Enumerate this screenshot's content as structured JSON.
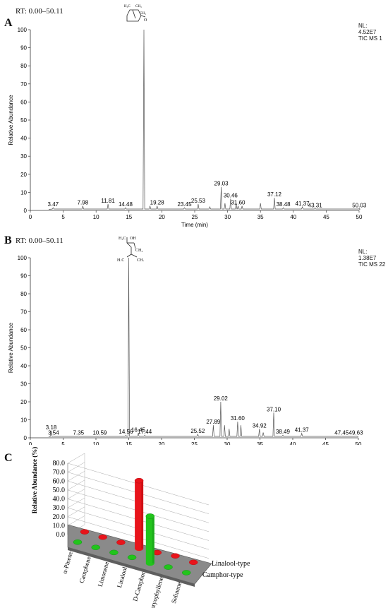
{
  "panel_a": {
    "letter": "A",
    "rt_label": "RT: 0.00–50.11",
    "nl": [
      "NL:",
      "4.52E7",
      "TIC  MS 1"
    ],
    "structure_label": "D-camphor structure"
  },
  "panel_b": {
    "letter": "B",
    "rt_label": "RT: 0.00–50.11",
    "nl": [
      "NL:",
      "1.38E7",
      "TIC  MS 22"
    ],
    "structure_label": "linalool structure"
  },
  "panel_c": {
    "letter": "C"
  },
  "chart_data": [
    {
      "type": "line",
      "panel": "A",
      "xlabel": "Time (min)",
      "ylabel": "Relative Abundance",
      "xlim": [
        0,
        50
      ],
      "ylim": [
        0,
        100
      ],
      "xticks": [
        0,
        5,
        10,
        15,
        20,
        25,
        30,
        35,
        40,
        45,
        50
      ],
      "yticks": [
        0,
        10,
        20,
        30,
        40,
        50,
        60,
        70,
        80,
        90,
        100
      ],
      "peaks": [
        [
          3.47,
          1.5
        ],
        [
          7.98,
          2.5
        ],
        [
          11.81,
          3.5
        ],
        [
          14.48,
          1.5
        ],
        [
          17.27,
          100
        ],
        [
          18.2,
          2.5
        ],
        [
          19.28,
          2.5
        ],
        [
          23.45,
          1.5
        ],
        [
          25.53,
          3.5
        ],
        [
          27.3,
          2
        ],
        [
          29.03,
          13
        ],
        [
          29.6,
          4
        ],
        [
          30.46,
          6.5
        ],
        [
          31.3,
          4
        ],
        [
          31.6,
          2.5
        ],
        [
          32.2,
          2.5
        ],
        [
          35.0,
          4
        ],
        [
          37.12,
          7
        ],
        [
          38.48,
          1.5
        ],
        [
          41.37,
          2
        ],
        [
          43.31,
          1
        ],
        [
          50.03,
          1
        ]
      ],
      "peak_labels": [
        {
          "x": 3.47,
          "text": "3.47"
        },
        {
          "x": 7.98,
          "text": "7.98"
        },
        {
          "x": 11.81,
          "text": "11.81"
        },
        {
          "x": 14.48,
          "text": "14.48"
        },
        {
          "x": 19.28,
          "text": "19.28"
        },
        {
          "x": 23.45,
          "text": "23.45"
        },
        {
          "x": 25.53,
          "text": "25.53"
        },
        {
          "x": 29.03,
          "text": "29.03"
        },
        {
          "x": 30.46,
          "text": "30.46"
        },
        {
          "x": 31.6,
          "text": "31.60"
        },
        {
          "x": 37.12,
          "text": "37.12"
        },
        {
          "x": 38.48,
          "text": "38.48"
        },
        {
          "x": 41.37,
          "text": "41.37"
        },
        {
          "x": 43.31,
          "text": "43.31"
        },
        {
          "x": 50.03,
          "text": "50.03"
        }
      ]
    },
    {
      "type": "line",
      "panel": "B",
      "xlabel": "",
      "ylabel": "Relative Abundance",
      "xlim": [
        0,
        50
      ],
      "ylim": [
        0,
        100
      ],
      "xticks": [
        0,
        5,
        10,
        15,
        20,
        25,
        30,
        35,
        40,
        45,
        50
      ],
      "yticks": [
        0,
        10,
        20,
        30,
        40,
        50,
        60,
        70,
        80,
        90,
        100
      ],
      "peaks": [
        [
          3.18,
          4
        ],
        [
          3.54,
          1
        ],
        [
          7.35,
          1
        ],
        [
          10.59,
          1
        ],
        [
          14.56,
          1.5
        ],
        [
          15.0,
          100
        ],
        [
          16.45,
          2.5
        ],
        [
          17.44,
          1.5
        ],
        [
          25.52,
          2
        ],
        [
          27.89,
          7
        ],
        [
          29.02,
          20
        ],
        [
          29.6,
          7
        ],
        [
          30.3,
          5
        ],
        [
          31.6,
          9
        ],
        [
          32.1,
          7
        ],
        [
          34.92,
          5
        ],
        [
          35.5,
          3
        ],
        [
          37.1,
          14
        ],
        [
          38.49,
          1.5
        ],
        [
          41.37,
          2.5
        ],
        [
          47.45,
          1
        ],
        [
          49.63,
          1
        ]
      ],
      "peak_labels": [
        {
          "x": 3.18,
          "text": "3.18"
        },
        {
          "x": 3.54,
          "text": "3.54"
        },
        {
          "x": 7.35,
          "text": "7.35"
        },
        {
          "x": 10.59,
          "text": "10.59"
        },
        {
          "x": 14.56,
          "text": "14.56"
        },
        {
          "x": 16.45,
          "text": "16.45"
        },
        {
          "x": 17.44,
          "text": "17.44"
        },
        {
          "x": 25.52,
          "text": "25.52"
        },
        {
          "x": 27.89,
          "text": "27.89"
        },
        {
          "x": 29.02,
          "text": "29.02"
        },
        {
          "x": 31.6,
          "text": "31.60"
        },
        {
          "x": 34.92,
          "text": "34.92"
        },
        {
          "x": 37.1,
          "text": "37.10"
        },
        {
          "x": 38.49,
          "text": "38.49"
        },
        {
          "x": 41.37,
          "text": "41.37"
        },
        {
          "x": 47.45,
          "text": "47.45"
        },
        {
          "x": 49.63,
          "text": "49.63"
        }
      ]
    },
    {
      "type": "bar",
      "panel": "C",
      "ylabel": "Relative Abundance (%)",
      "ylim": [
        0,
        80
      ],
      "yticks": [
        "0.0",
        "10.0",
        "20.0",
        "30.0",
        "40.0",
        "50.0",
        "60.0",
        "70.0",
        "80.0"
      ],
      "categories": [
        "α-Pinene",
        "Camphene",
        "Limonene",
        "Linalool",
        "D-Camphor",
        "Caryophyllene",
        "Selinene"
      ],
      "series": [
        {
          "name": "Linalool-type",
          "color": "#e8141b",
          "values": [
            1.5,
            1.2,
            1.0,
            76.0,
            1.0,
            3.0,
            1.5
          ]
        },
        {
          "name": "Camphor-type",
          "color": "#22c41c",
          "values": [
            1.0,
            0.8,
            0.8,
            1.0,
            53.0,
            1.5,
            1.0
          ]
        }
      ]
    }
  ]
}
